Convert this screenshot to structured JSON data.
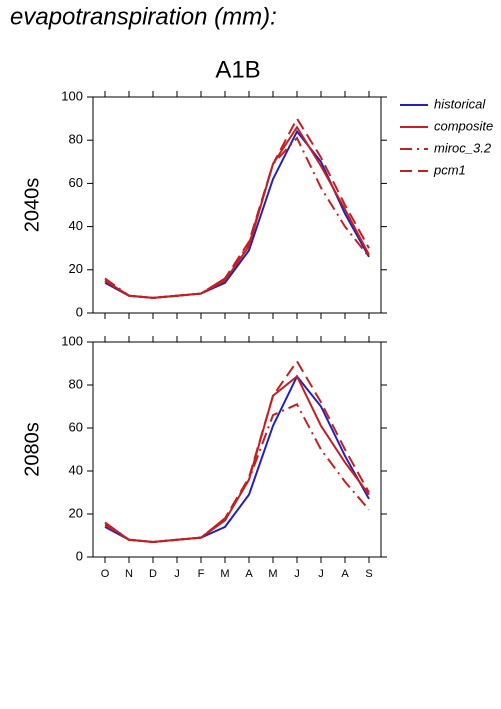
{
  "chart_data": [
    {
      "type": "line",
      "title": "evapotranspiration (mm):",
      "subtitle": "A1B",
      "ylabel": "2040s",
      "ylim": [
        0,
        100
      ],
      "yticks": [
        0,
        20,
        40,
        60,
        80,
        100
      ],
      "series": [
        {
          "name": "historical",
          "color": "#2222bb",
          "line_style": "solid",
          "values": [
            14,
            8,
            7,
            8,
            9,
            14,
            29,
            62,
            84,
            70,
            46,
            26
          ]
        },
        {
          "name": "composite",
          "color": "#c42020",
          "line_style": "solid",
          "values": [
            15,
            8,
            7,
            8,
            9,
            15,
            31,
            69,
            86,
            68,
            48,
            27
          ]
        },
        {
          "name": "miroc_3.2",
          "color": "#c42020",
          "line_style": "dashdot",
          "values": [
            16,
            8,
            7,
            8,
            9,
            16,
            32,
            69,
            81,
            58,
            40,
            26
          ]
        },
        {
          "name": "pcm1",
          "color": "#c42020",
          "line_style": "dash",
          "values": [
            15,
            8,
            7,
            8,
            9,
            16,
            33,
            69,
            90,
            72,
            50,
            30
          ]
        }
      ]
    },
    {
      "type": "line",
      "ylabel": "2080s",
      "categories": [
        "O",
        "N",
        "D",
        "J",
        "F",
        "M",
        "A",
        "M",
        "J",
        "J",
        "A",
        "S"
      ],
      "ylim": [
        0,
        100
      ],
      "yticks": [
        0,
        20,
        40,
        60,
        80,
        100
      ],
      "series": [
        {
          "color": "#2222bb",
          "line_style": "solid",
          "values": [
            14,
            8,
            7,
            8,
            9,
            14,
            29,
            61,
            84,
            70,
            47,
            27
          ]
        },
        {
          "color": "#c42020",
          "line_style": "solid",
          "values": [
            16,
            8,
            7,
            8,
            9,
            17,
            36,
            75,
            84,
            61,
            44,
            29
          ]
        },
        {
          "color": "#c42020",
          "line_style": "dashdot",
          "values": [
            16,
            8,
            7,
            8,
            9,
            18,
            36,
            66,
            71,
            50,
            35,
            22
          ]
        },
        {
          "color": "#c42020",
          "line_style": "dash",
          "values": [
            15,
            8,
            7,
            8,
            9,
            18,
            37,
            75,
            91,
            72,
            50,
            30
          ]
        }
      ]
    }
  ]
}
